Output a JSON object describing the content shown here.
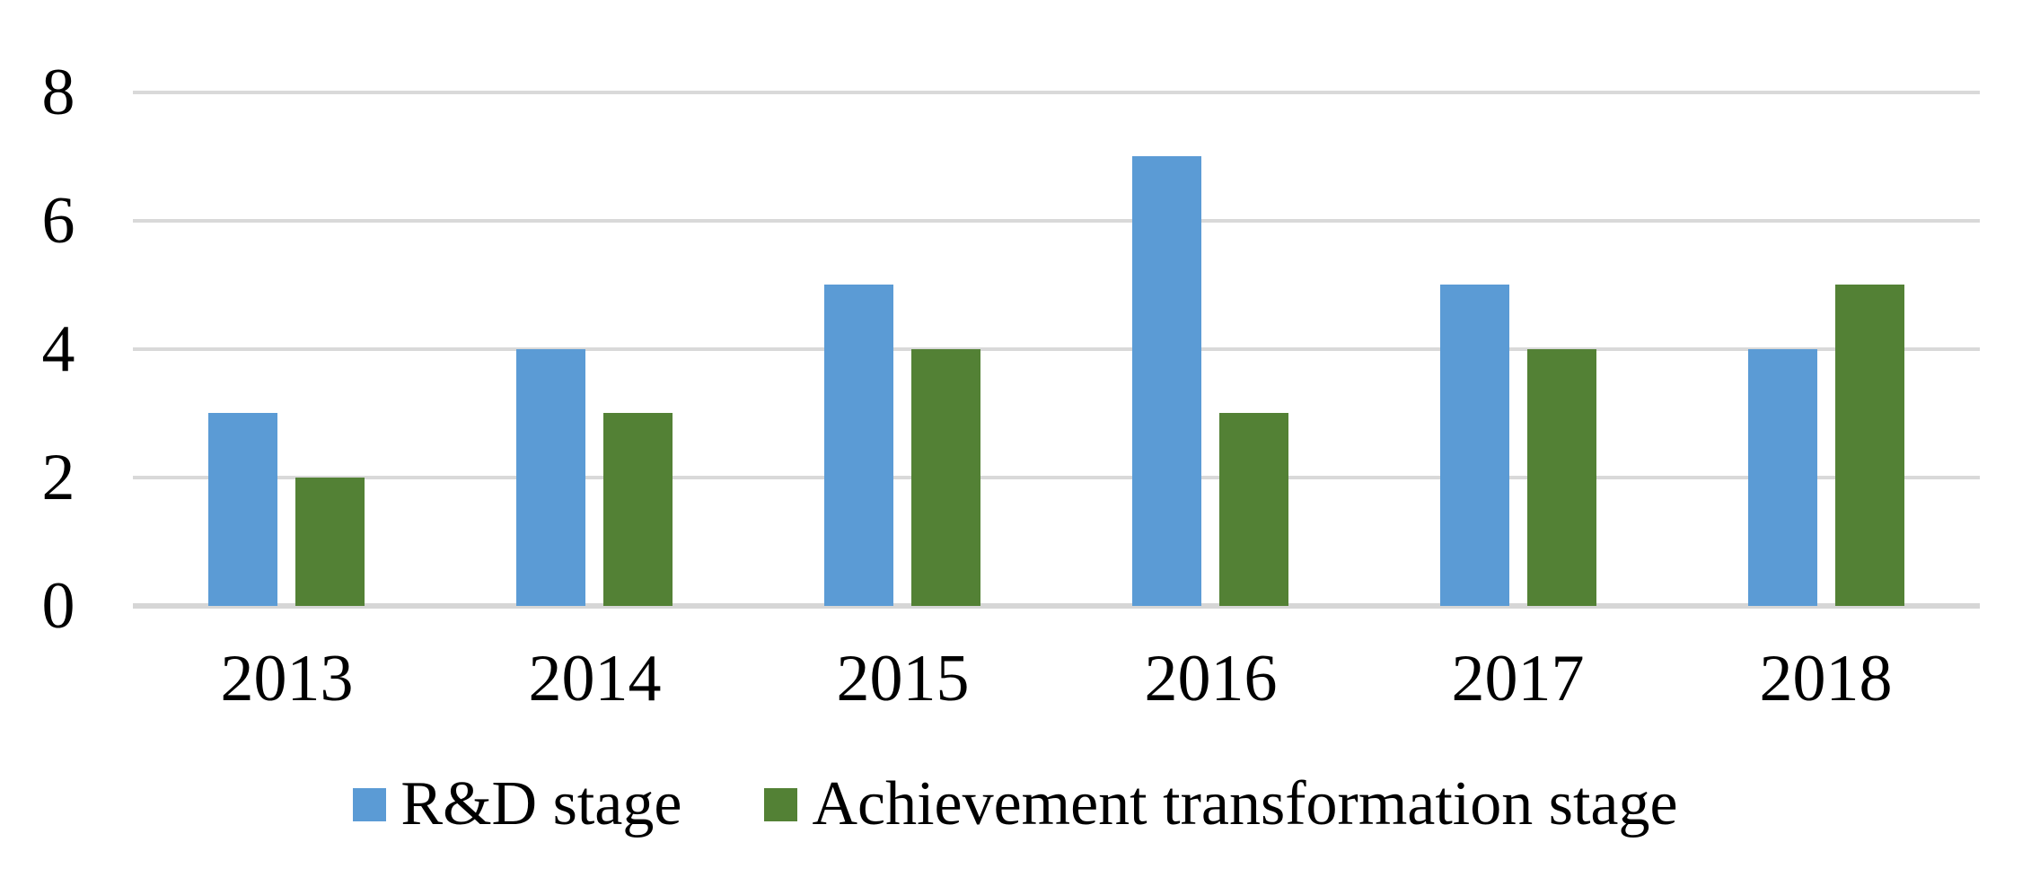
{
  "chart_data": {
    "type": "bar",
    "title": "",
    "xlabel": "",
    "ylabel": "",
    "categories": [
      "2013",
      "2014",
      "2015",
      "2016",
      "2017",
      "2018"
    ],
    "series": [
      {
        "name": "R&D stage",
        "color": "#5B9BD5",
        "values": [
          3,
          4,
          5,
          7,
          5,
          4
        ]
      },
      {
        "name": "Achievement transformation stage",
        "color": "#538135",
        "values": [
          2,
          3,
          4,
          3,
          4,
          5
        ]
      }
    ],
    "ylim": [
      0,
      8
    ],
    "yticks": [
      0,
      2,
      4,
      6,
      8
    ],
    "grid": "horizontal",
    "gridline_color": "#D9D9D9",
    "legend_position": "bottom",
    "background": "#FFFFFF",
    "tick_text_color": "#000000"
  }
}
